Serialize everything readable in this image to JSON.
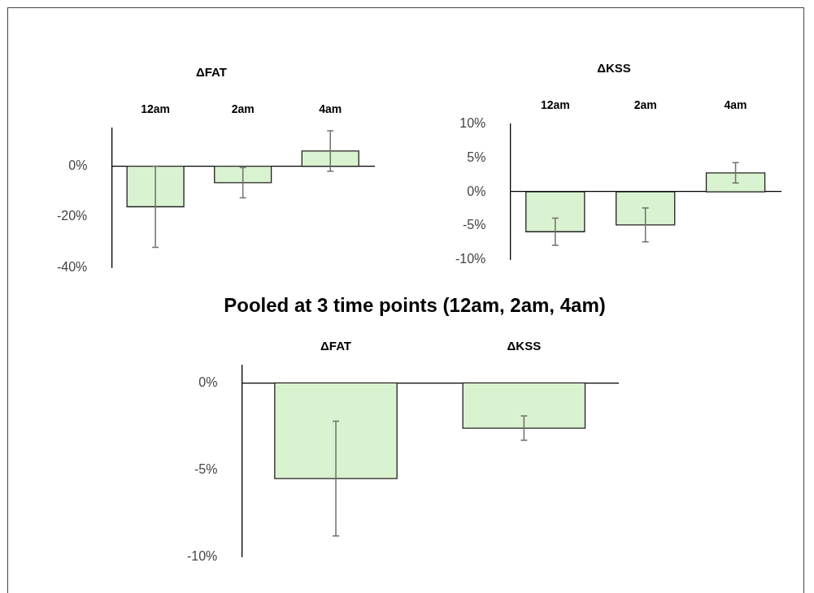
{
  "chart_data": [
    {
      "type": "bar",
      "title": "ΔFAT",
      "categories": [
        "12am",
        "2am",
        "4am"
      ],
      "values": [
        -16,
        -6.5,
        6
      ],
      "errors": [
        16,
        6,
        8
      ],
      "color": "#d9f2d0",
      "ylim": [
        -40,
        15
      ],
      "yticks": [
        {
          "value": 0,
          "label": "0%"
        },
        {
          "value": -20,
          "label": "-20%"
        },
        {
          "value": -40,
          "label": "-40%"
        }
      ]
    },
    {
      "type": "bar",
      "title": "ΔKSS",
      "categories": [
        "12am",
        "2am",
        "4am"
      ],
      "values": [
        -5.9,
        -4.9,
        2.8
      ],
      "errors": [
        2,
        2.5,
        1.5
      ],
      "color": "#d9f2d0",
      "ylim": [
        -10,
        10
      ],
      "yticks": [
        {
          "value": 10,
          "label": "10%"
        },
        {
          "value": 5,
          "label": "5%"
        },
        {
          "value": 0,
          "label": "0%"
        },
        {
          "value": -5,
          "label": "-5%"
        },
        {
          "value": -10,
          "label": "-10%"
        }
      ]
    },
    {
      "type": "bar",
      "title": "Pooled at 3 time points (12am, 2am, 4am)",
      "categories": [
        "ΔFAT",
        "ΔKSS"
      ],
      "values": [
        -5.5,
        -2.6
      ],
      "errors": [
        3.3,
        0.7
      ],
      "color": "#d9f2d0",
      "ylim": [
        -10,
        1
      ],
      "yticks": [
        {
          "value": 0,
          "label": "0%"
        },
        {
          "value": -5,
          "label": "-5%"
        },
        {
          "value": -10,
          "label": "-10%"
        }
      ]
    }
  ]
}
